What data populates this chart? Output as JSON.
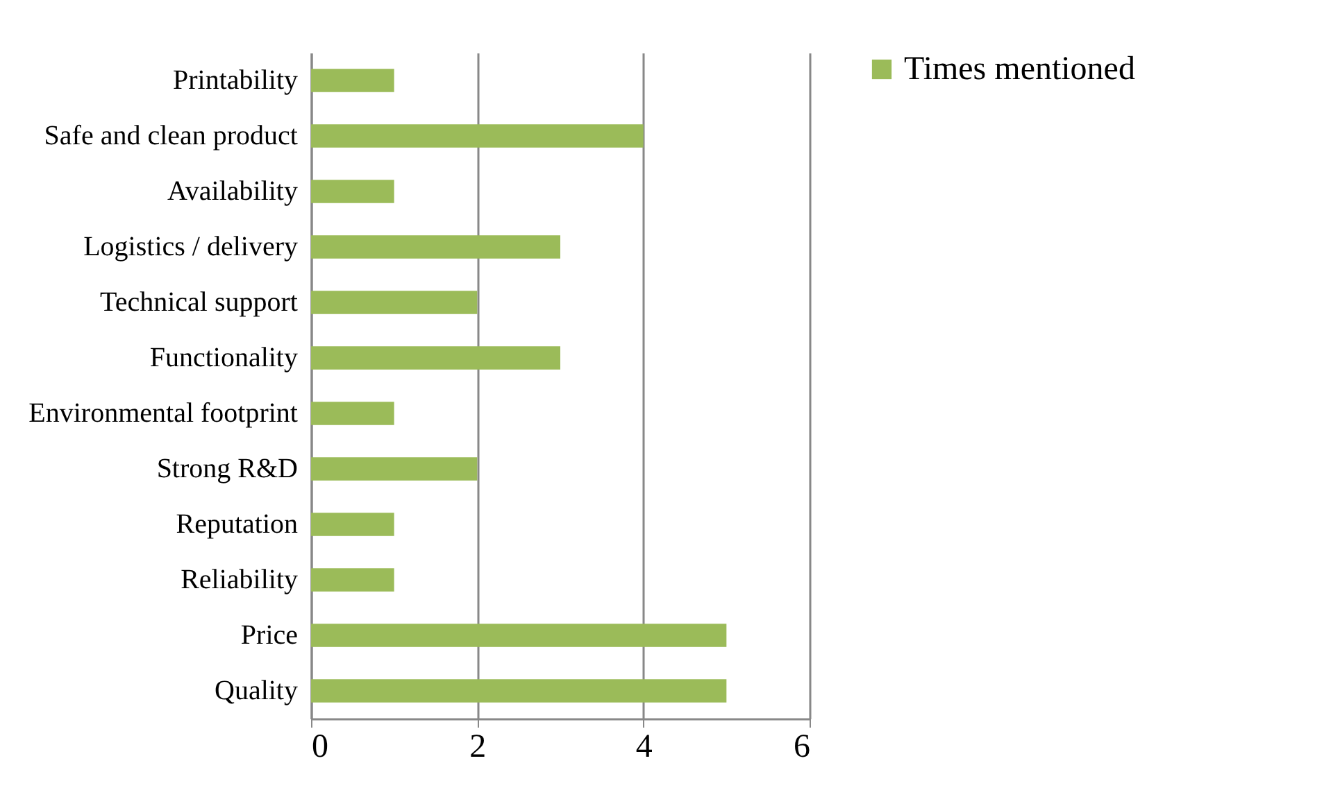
{
  "chart_data": {
    "type": "bar",
    "orientation": "horizontal",
    "categories": [
      "Printability",
      "Safe and clean product",
      "Availability",
      "Logistics / delivery",
      "Technical support",
      "Functionality",
      "Environmental footprint",
      "Strong R&D",
      "Reputation",
      "Reliability",
      "Price",
      "Quality"
    ],
    "series": [
      {
        "name": "Times mentioned",
        "color": "#9bbb59",
        "values": [
          1,
          4,
          1,
          3,
          2,
          3,
          1,
          2,
          1,
          1,
          5,
          5
        ]
      }
    ],
    "xlim": [
      0,
      6
    ],
    "xticks": [
      0,
      2,
      4,
      6
    ],
    "grid": "x",
    "legend": "right"
  }
}
